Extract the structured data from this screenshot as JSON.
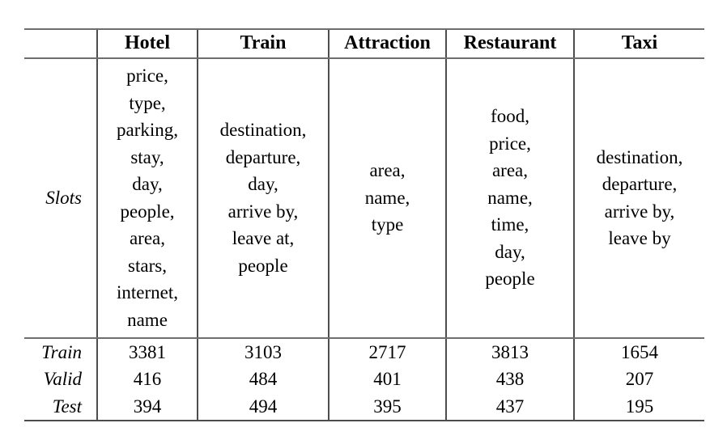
{
  "table": {
    "columns": [
      "",
      "Hotel",
      "Train",
      "Attraction",
      "Restaurant",
      "Taxi"
    ],
    "slots_label": "Slots",
    "slots": {
      "hotel": [
        "price",
        "type",
        "parking",
        "stay",
        "day",
        "people",
        "area",
        "stars",
        "internet",
        "name"
      ],
      "train": [
        "destination",
        "departure",
        "day",
        "arrive by",
        "leave at",
        "people"
      ],
      "attraction": [
        "area",
        "name",
        "type"
      ],
      "restaurant": [
        "food",
        "price",
        "area",
        "name",
        "time",
        "day",
        "people"
      ],
      "taxi": [
        "destination",
        "departure",
        "arrive by",
        "leave by"
      ]
    },
    "stats": [
      {
        "label": "Train",
        "values": [
          3381,
          3103,
          2717,
          3813,
          1654
        ]
      },
      {
        "label": "Valid",
        "values": [
          416,
          484,
          401,
          438,
          207
        ]
      },
      {
        "label": "Test",
        "values": [
          394,
          494,
          395,
          437,
          195
        ]
      }
    ]
  }
}
